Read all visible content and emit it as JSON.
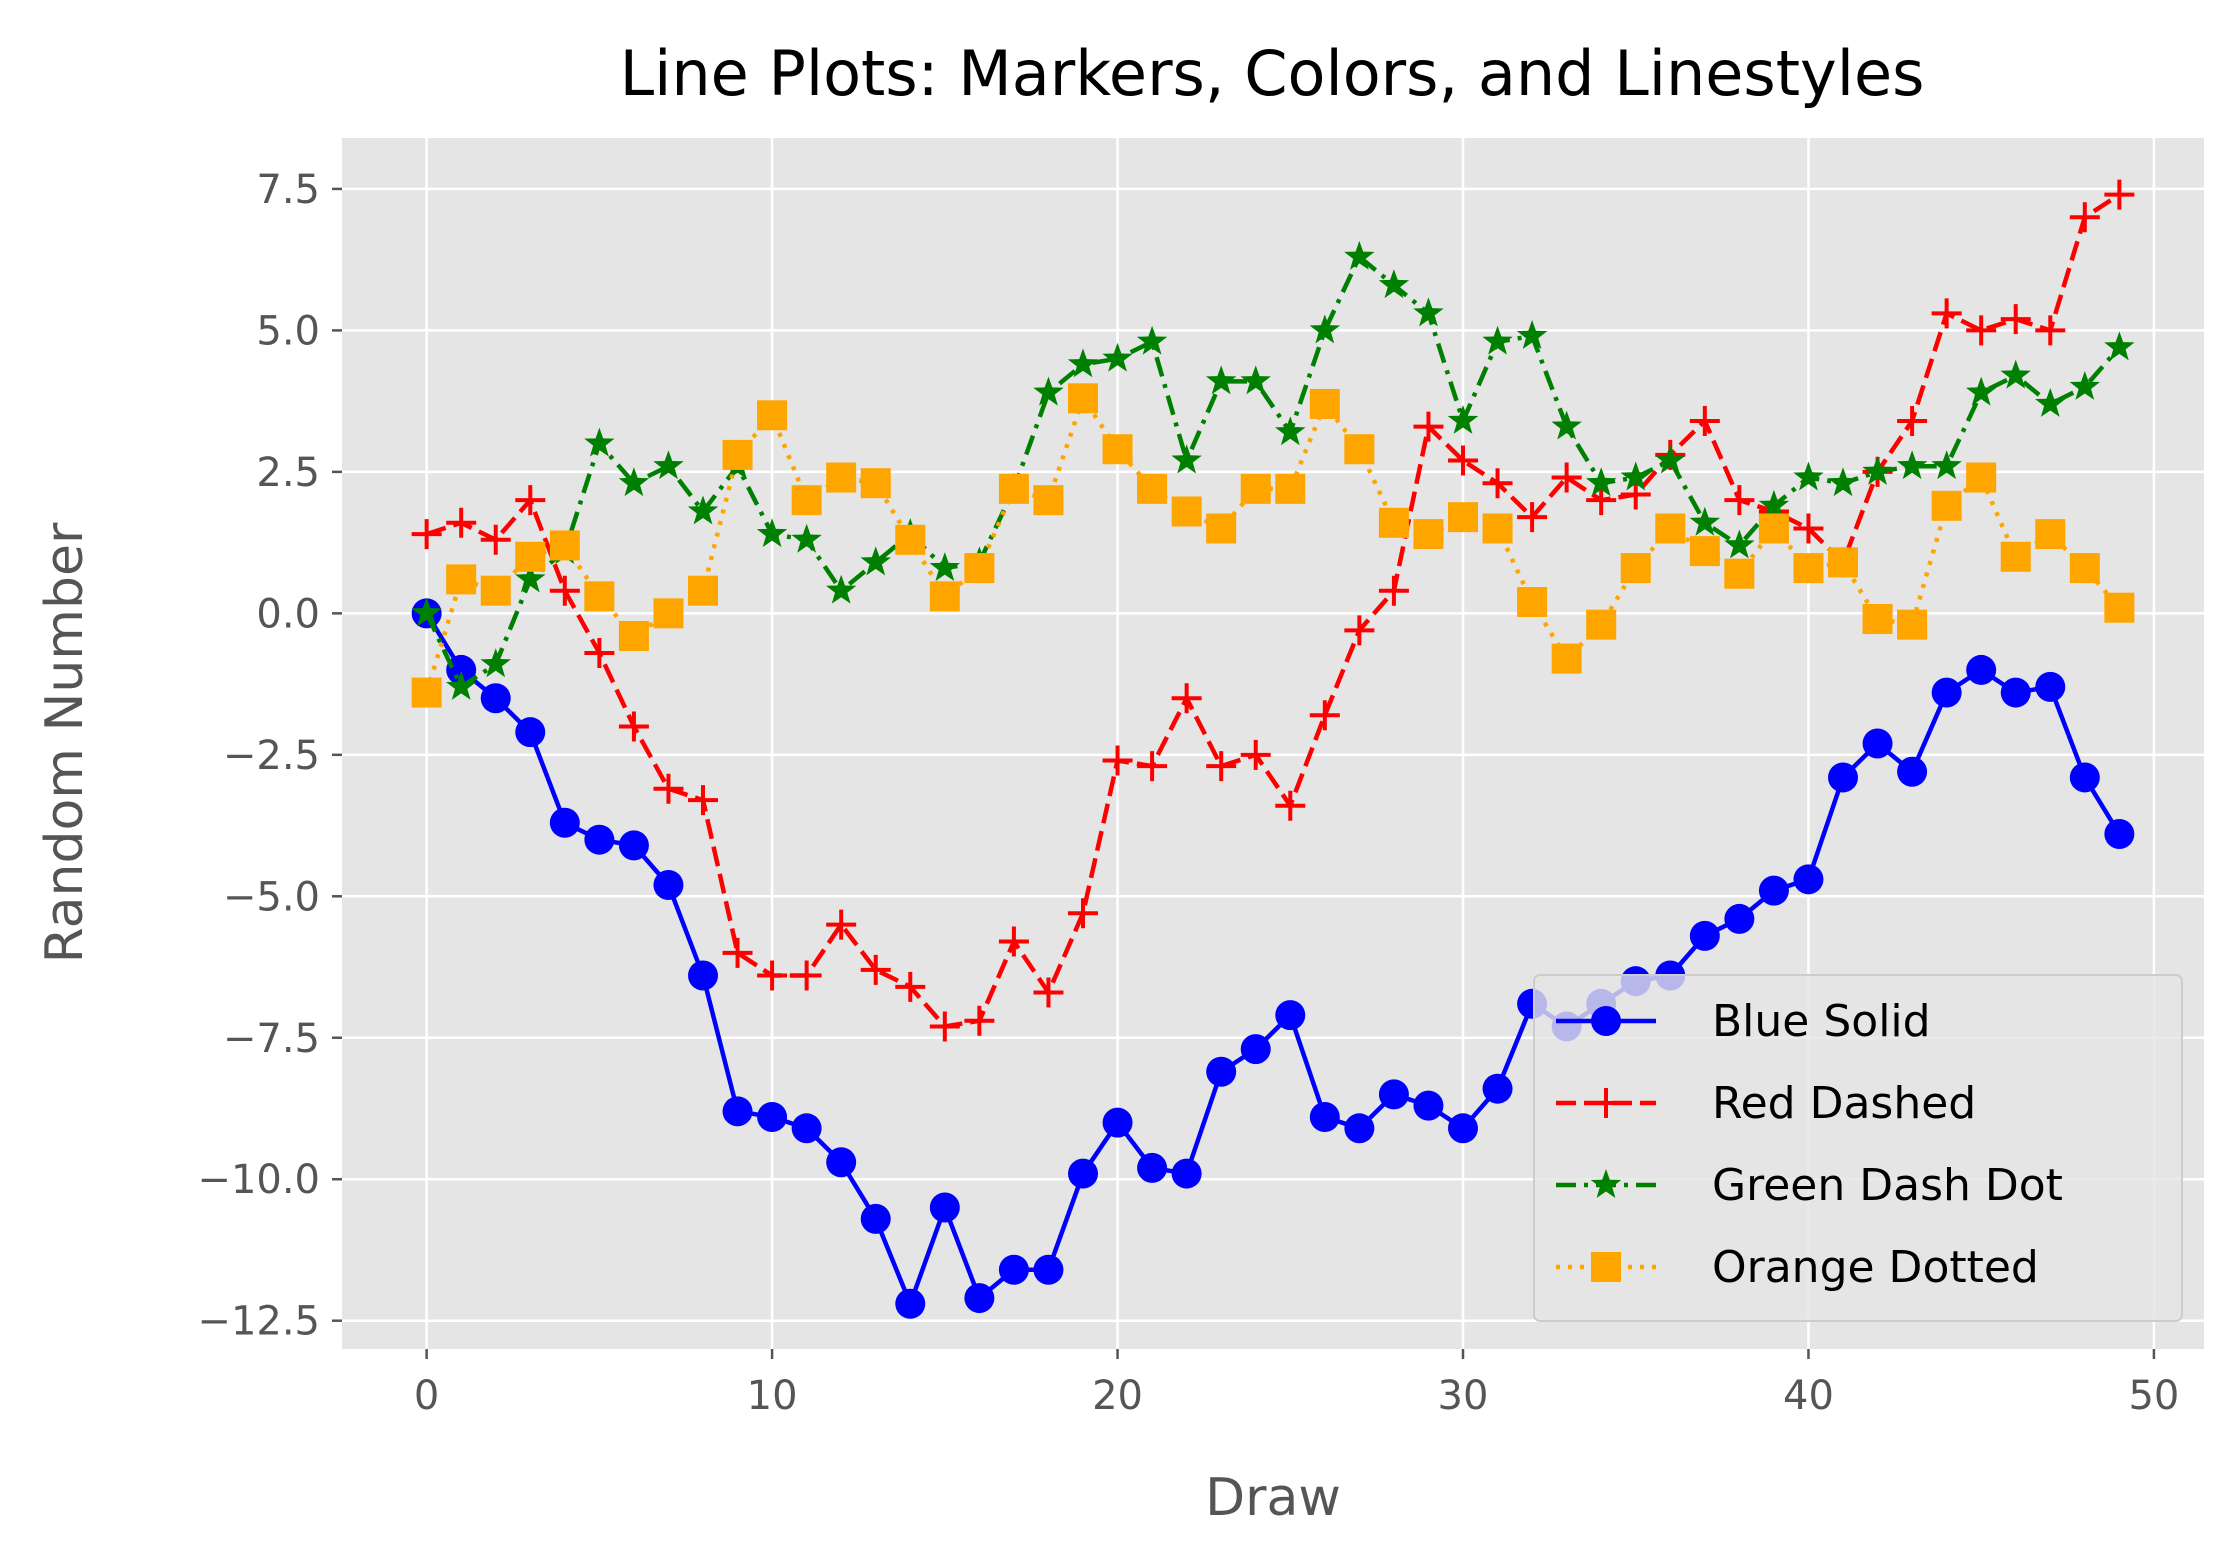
{
  "chart_data": {
    "type": "line",
    "title": "Line Plots: Markers, Colors, and Linestyles",
    "xlabel": "Draw",
    "ylabel": "Random Number",
    "xlim": [
      -2.45,
      51.45
    ],
    "ylim": [
      -13.0,
      8.4
    ],
    "xticks": [
      0,
      10,
      20,
      30,
      40,
      50
    ],
    "yticks": [
      -12.5,
      -10.0,
      -7.5,
      -5.0,
      -2.5,
      0.0,
      2.5,
      5.0,
      7.5
    ],
    "xtick_labels": [
      "0",
      "10",
      "20",
      "30",
      "40",
      "50"
    ],
    "ytick_labels": [
      "−12.5",
      "−10.0",
      "−7.5",
      "−5.0",
      "−2.5",
      "0.0",
      "2.5",
      "5.0",
      "7.5"
    ],
    "grid": true,
    "legend_position": "lower-right",
    "background": "#e5e5e5",
    "series": [
      {
        "name": "Blue Solid",
        "color": "#0000ff",
        "linestyle": "solid",
        "marker": "circle",
        "x": [
          0,
          1,
          2,
          3,
          4,
          5,
          6,
          7,
          8,
          9,
          10,
          11,
          12,
          13,
          14,
          15,
          16,
          17,
          18,
          19,
          20,
          21,
          22,
          23,
          24,
          25,
          26,
          27,
          28,
          29,
          30,
          31,
          32,
          33,
          34,
          35,
          36,
          37,
          38,
          39,
          40,
          41,
          42,
          43,
          44,
          45,
          46,
          47,
          48,
          49
        ],
        "y": [
          0.0,
          -1.0,
          -1.5,
          -2.1,
          -3.7,
          -4.0,
          -4.1,
          -4.8,
          -6.4,
          -8.8,
          -8.9,
          -9.1,
          -9.7,
          -10.7,
          -12.2,
          -10.5,
          -12.1,
          -11.6,
          -11.6,
          -9.9,
          -9.0,
          -9.8,
          -9.9,
          -8.1,
          -7.7,
          -7.1,
          -8.9,
          -9.1,
          -8.5,
          -8.7,
          -9.1,
          -8.4,
          -6.9,
          -7.3,
          -6.9,
          -6.5,
          -6.4,
          -5.7,
          -5.4,
          -4.9,
          -4.7,
          -2.9,
          -2.3,
          -2.8,
          -1.4,
          -1.0,
          -1.4,
          -1.3,
          -2.9,
          -3.9
        ]
      },
      {
        "name": "Red Dashed",
        "color": "#ff0000",
        "linestyle": "dashed",
        "marker": "plus",
        "x": [
          0,
          1,
          2,
          3,
          4,
          5,
          6,
          7,
          8,
          9,
          10,
          11,
          12,
          13,
          14,
          15,
          16,
          17,
          18,
          19,
          20,
          21,
          22,
          23,
          24,
          25,
          26,
          27,
          28,
          29,
          30,
          31,
          32,
          33,
          34,
          35,
          36,
          37,
          38,
          39,
          40,
          41,
          42,
          43,
          44,
          45,
          46,
          47,
          48,
          49
        ],
        "y": [
          1.4,
          1.6,
          1.3,
          2.0,
          0.4,
          -0.7,
          -2.0,
          -3.1,
          -3.3,
          -6.0,
          -6.4,
          -6.4,
          -5.5,
          -6.3,
          -6.6,
          -7.3,
          -7.2,
          -5.8,
          -6.7,
          -5.3,
          -2.6,
          -2.7,
          -1.5,
          -2.7,
          -2.5,
          -3.4,
          -1.8,
          -0.3,
          0.4,
          3.3,
          2.7,
          2.3,
          1.7,
          2.4,
          2.0,
          2.1,
          2.8,
          3.4,
          2.0,
          1.8,
          1.5,
          0.9,
          2.5,
          3.4,
          5.3,
          5.0,
          5.2,
          5.0,
          7.0,
          7.4
        ]
      },
      {
        "name": "Green Dash Dot",
        "color": "#008000",
        "linestyle": "dashdot",
        "marker": "star",
        "x": [
          0,
          1,
          2,
          3,
          4,
          5,
          6,
          7,
          8,
          9,
          10,
          11,
          12,
          13,
          14,
          15,
          16,
          17,
          18,
          19,
          20,
          21,
          22,
          23,
          24,
          25,
          26,
          27,
          28,
          29,
          30,
          31,
          32,
          33,
          34,
          35,
          36,
          37,
          38,
          39,
          40,
          41,
          42,
          43,
          44,
          45,
          46,
          47,
          48,
          49
        ],
        "y": [
          0.0,
          -1.3,
          -0.9,
          0.6,
          1.1,
          3.0,
          2.3,
          2.6,
          1.8,
          2.6,
          1.4,
          1.3,
          0.4,
          0.9,
          1.4,
          0.8,
          0.9,
          2.2,
          3.9,
          4.4,
          4.5,
          4.8,
          2.7,
          4.1,
          4.1,
          3.2,
          5.0,
          6.3,
          5.8,
          5.3,
          3.4,
          4.8,
          4.9,
          3.3,
          2.3,
          2.4,
          2.7,
          1.6,
          1.2,
          1.9,
          2.4,
          2.3,
          2.5,
          2.6,
          2.6,
          3.9,
          4.2,
          3.7,
          4.0,
          4.7
        ]
      },
      {
        "name": "Orange Dotted",
        "color": "#ffa500",
        "linestyle": "dotted",
        "marker": "square",
        "x": [
          0,
          1,
          2,
          3,
          4,
          5,
          6,
          7,
          8,
          9,
          10,
          11,
          12,
          13,
          14,
          15,
          16,
          17,
          18,
          19,
          20,
          21,
          22,
          23,
          24,
          25,
          26,
          27,
          28,
          29,
          30,
          31,
          32,
          33,
          34,
          35,
          36,
          37,
          38,
          39,
          40,
          41,
          42,
          43,
          44,
          45,
          46,
          47,
          48,
          49
        ],
        "y": [
          -1.4,
          0.6,
          0.4,
          1.0,
          1.2,
          0.3,
          -0.4,
          0.0,
          0.4,
          2.8,
          3.5,
          2.0,
          2.4,
          2.3,
          1.3,
          0.3,
          0.8,
          2.2,
          2.0,
          3.8,
          2.9,
          2.2,
          1.8,
          1.5,
          2.2,
          2.2,
          3.7,
          2.9,
          1.6,
          1.4,
          1.7,
          1.5,
          0.2,
          -0.8,
          -0.2,
          0.8,
          1.5,
          1.1,
          0.7,
          1.5,
          0.8,
          0.9,
          -0.1,
          -0.2,
          1.9,
          2.4,
          1.0,
          1.4,
          0.8,
          0.1
        ]
      }
    ]
  }
}
